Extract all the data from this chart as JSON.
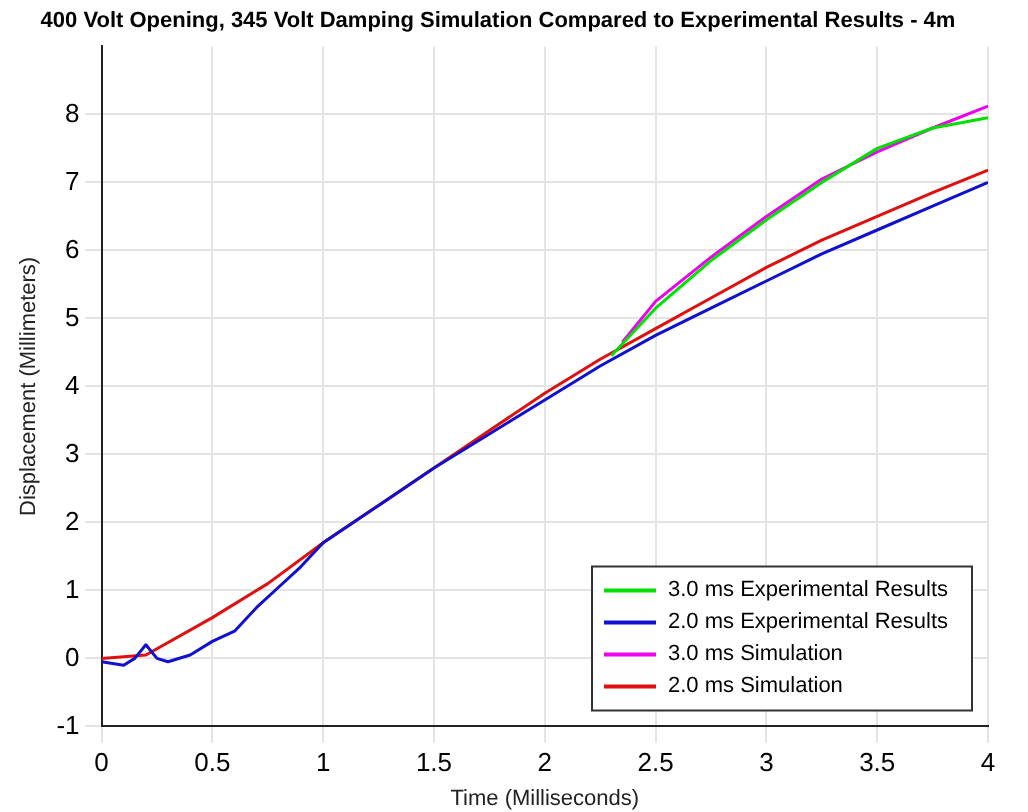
{
  "chart_data": {
    "type": "line",
    "title": "400 Volt Opening, 345 Volt Damping Simulation Compared to Experimental Results - 4m",
    "xlabel": "Time (Milliseconds)",
    "ylabel": "Displacement (Millimeters)",
    "xlim": [
      0,
      4
    ],
    "xticks": [
      0,
      0.5,
      1,
      1.5,
      2,
      2.5,
      3,
      3.5,
      4
    ],
    "ylim": [
      -1,
      9
    ],
    "yticks": [
      -1,
      0,
      1,
      2,
      3,
      4,
      5,
      6,
      7,
      8
    ],
    "grid": true,
    "legend": "bottom right",
    "marker": "none",
    "line_style": "solid",
    "series": [
      {
        "name": "3.0 ms Experimental Results",
        "color": "#00e000",
        "x": [
          2.3,
          2.5,
          2.75,
          3,
          3.25,
          3.5,
          3.75,
          4
        ],
        "values": [
          4.45,
          5.15,
          5.85,
          6.45,
          7.0,
          7.5,
          7.8,
          7.95
        ]
      },
      {
        "name": "2.0 ms Experimental Results",
        "color": "#1010d0",
        "x": [
          0,
          0.1,
          0.15,
          0.2,
          0.25,
          0.3,
          0.4,
          0.5,
          0.6,
          0.7,
          0.8,
          0.9,
          1,
          1.25,
          1.5,
          1.75,
          2,
          2.25,
          2.5,
          2.75,
          3,
          3.25,
          3.5,
          3.75,
          4
        ],
        "values": [
          -0.05,
          -0.1,
          0,
          0.2,
          0,
          -0.05,
          0.05,
          0.25,
          0.4,
          0.75,
          1.05,
          1.35,
          1.7,
          2.25,
          2.8,
          3.3,
          3.8,
          4.3,
          4.75,
          5.15,
          5.55,
          5.95,
          6.3,
          6.65,
          7.0
        ]
      },
      {
        "name": "3.0 ms Simulation",
        "color": "#ee00ee",
        "x": [
          2.35,
          2.5,
          2.75,
          3,
          3.25,
          3.5,
          3.75,
          4
        ],
        "values": [
          4.65,
          5.25,
          5.9,
          6.5,
          7.05,
          7.45,
          7.8,
          8.12
        ]
      },
      {
        "name": "2.0 ms Simulation",
        "color": "#e01010",
        "x": [
          0,
          0.2,
          0.5,
          0.75,
          1,
          1.25,
          1.5,
          1.75,
          2,
          2.25,
          2.5,
          2.75,
          3,
          3.25,
          3.5,
          3.75,
          4
        ],
        "values": [
          0,
          0.05,
          0.6,
          1.1,
          1.7,
          2.25,
          2.8,
          3.35,
          3.9,
          4.4,
          4.85,
          5.3,
          5.75,
          6.15,
          6.5,
          6.85,
          7.18
        ]
      }
    ]
  }
}
